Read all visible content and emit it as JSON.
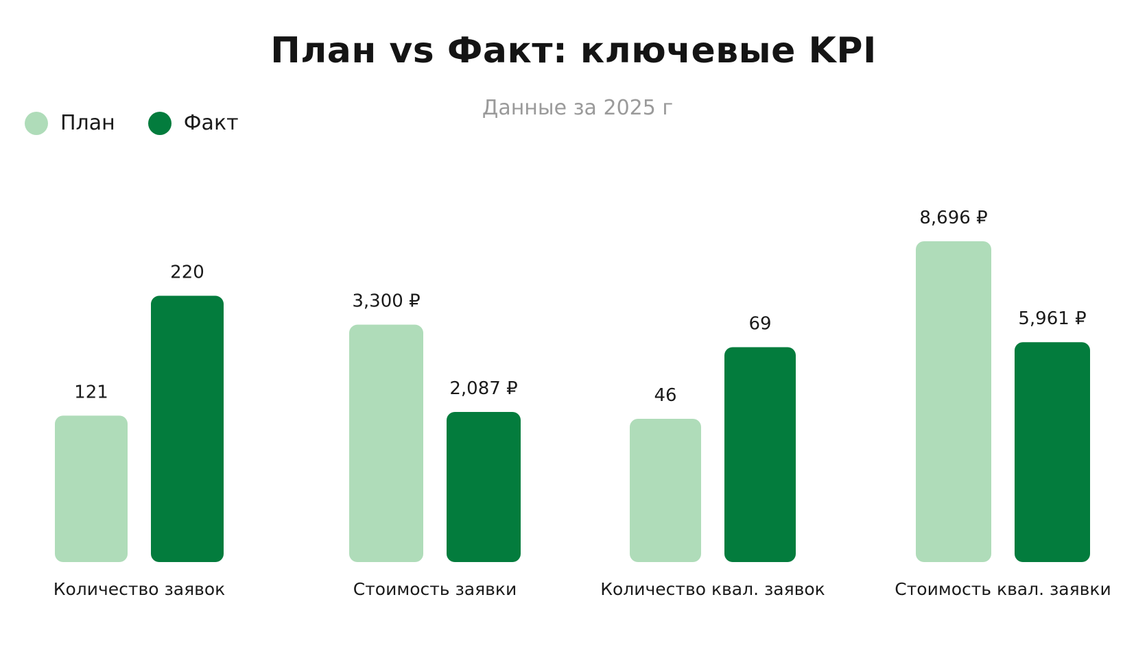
{
  "title": "План vs Факт: ключевые KPI",
  "subtitle": "Данные за 2025 г",
  "colors": {
    "plan": "#afdcb9",
    "fact": "#037c3d"
  },
  "chart_data": {
    "type": "bar",
    "title": "План vs Факт: ключевые KPI",
    "subtitle": "Данные за 2025 г",
    "legend_position": "top-left",
    "grid": false,
    "categories": [
      "Количество заявок",
      "Стоимость заявки",
      "Количество квал. заявок",
      "Стоимость квал. заявки"
    ],
    "series": [
      {
        "name": "План",
        "color": "#afdcb9",
        "values": [
          121,
          3300,
          46,
          8696
        ],
        "labels": [
          "121",
          "3,300 ₽",
          "46",
          "8,696 ₽"
        ]
      },
      {
        "name": "Факт",
        "color": "#037c3d",
        "values": [
          220,
          2087,
          69,
          5961
        ],
        "labels": [
          "220",
          "2,087 ₽",
          "69",
          "5,961 ₽"
        ]
      }
    ]
  }
}
